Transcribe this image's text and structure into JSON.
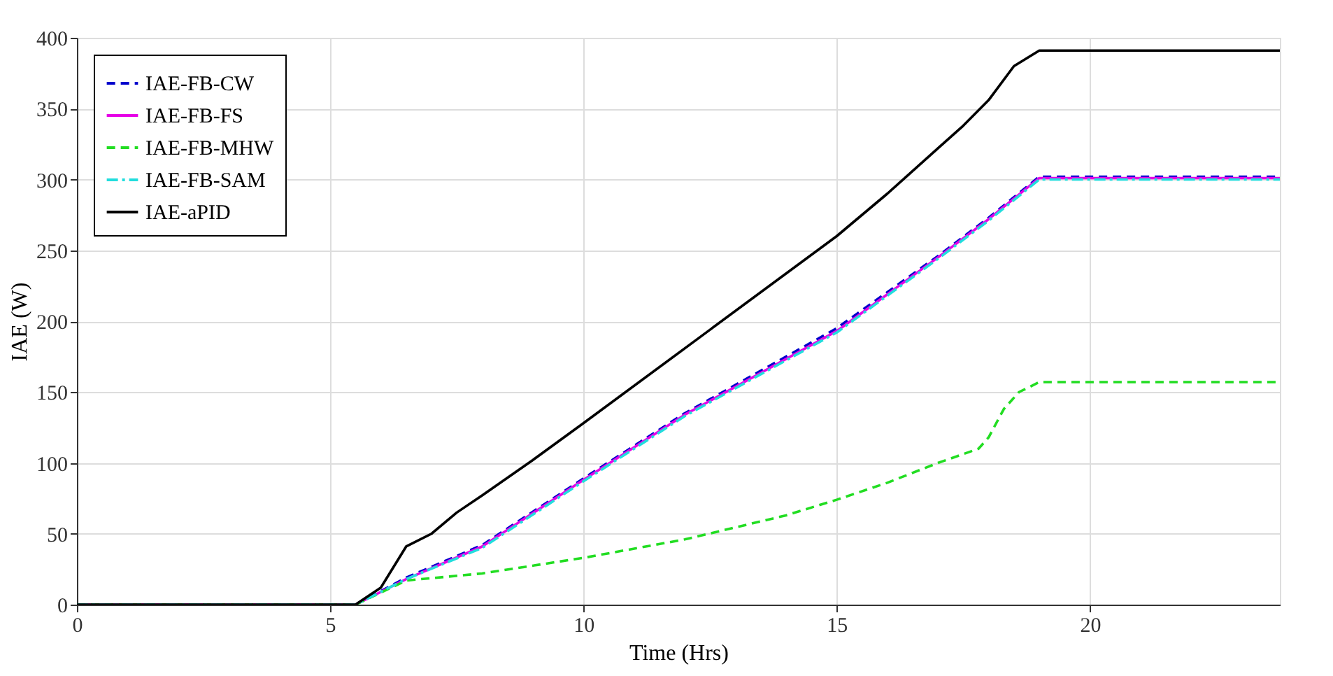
{
  "chart_data": {
    "type": "line",
    "xlabel": "Time (Hrs)",
    "ylabel": "IAE (W)",
    "xlim": [
      0,
      23.75
    ],
    "ylim": [
      0,
      400
    ],
    "xticks": [
      0,
      5,
      10,
      15,
      20
    ],
    "yticks": [
      0,
      50,
      100,
      150,
      200,
      250,
      300,
      350,
      400
    ],
    "grid": true,
    "legend": "top left",
    "series": [
      {
        "name": "IAE-FB-CW",
        "color": "#0000cc",
        "line_style": "dashed",
        "x": [
          0,
          5.5,
          6.5,
          8,
          10,
          12,
          15,
          17,
          18,
          19,
          23.75
        ],
        "values": [
          0,
          0,
          19,
          42,
          89,
          135,
          195,
          246,
          273,
          302,
          302
        ]
      },
      {
        "name": "IAE-FB-FS",
        "color": "#e600e6",
        "line_style": "solid",
        "x": [
          0,
          5.5,
          6.5,
          8,
          10,
          12,
          15,
          17,
          18,
          19,
          23.75
        ],
        "values": [
          0,
          0,
          18,
          41,
          88,
          134,
          193,
          245,
          272,
          301,
          301
        ]
      },
      {
        "name": "IAE-FB-MHW",
        "color": "#22dd22",
        "line_style": "dashed",
        "x": [
          0,
          5.5,
          6.5,
          8,
          10,
          12,
          14,
          15,
          16,
          17,
          17.8,
          18,
          18.3,
          18.6,
          19,
          23.75
        ],
        "values": [
          0,
          0,
          17,
          22,
          33,
          46,
          63,
          74,
          86,
          100,
          110,
          118,
          138,
          150,
          157,
          157
        ]
      },
      {
        "name": "IAE-FB-SAM",
        "color": "#22dddd",
        "line_style": "dashdot",
        "x": [
          0,
          5.5,
          6.5,
          8,
          10,
          12,
          15,
          17,
          18,
          19,
          23.75
        ],
        "values": [
          0,
          0,
          18,
          40,
          87,
          133,
          192,
          244,
          271,
          300,
          300
        ]
      },
      {
        "name": "IAE-aPID",
        "color": "#000000",
        "line_style": "solid",
        "x": [
          0,
          5.5,
          6,
          6.5,
          7,
          7.5,
          8,
          9,
          10,
          15,
          16,
          17,
          17.5,
          18,
          18.5,
          19,
          23.75
        ],
        "values": [
          0,
          0,
          12,
          41,
          50,
          65,
          77,
          102,
          128,
          260,
          290,
          322,
          338,
          356,
          380,
          391,
          391
        ]
      }
    ]
  }
}
